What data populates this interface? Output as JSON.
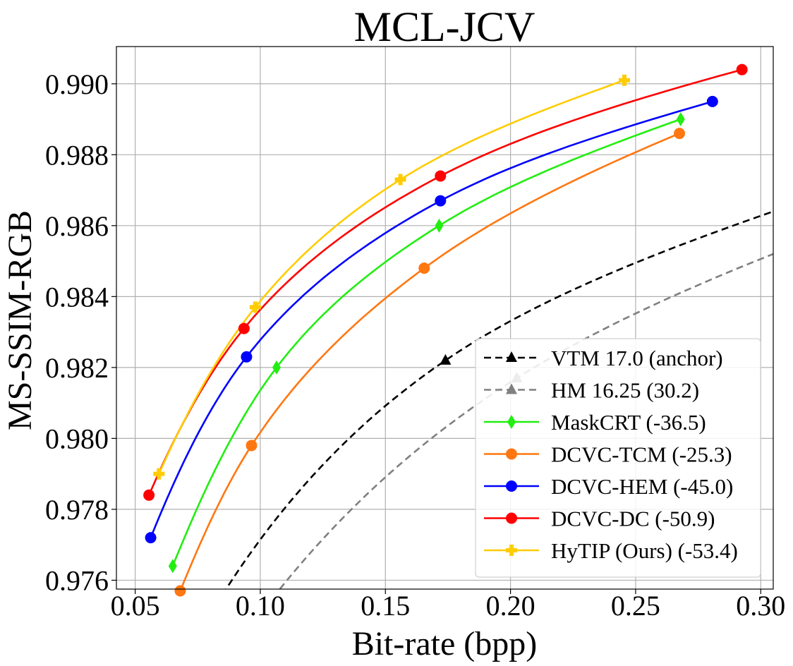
{
  "chart_data": {
    "type": "line",
    "title": "MCL-JCV",
    "xlabel": "Bit-rate (bpp)",
    "ylabel": "MS-SSIM-RGB",
    "xlim": [
      0.0425,
      0.305
    ],
    "ylim": [
      0.97575,
      0.99105
    ],
    "xticks": [
      0.05,
      0.1,
      0.15,
      0.2,
      0.25,
      0.3
    ],
    "xtick_labels": [
      "0.05",
      "0.10",
      "0.15",
      "0.20",
      "0.25",
      "0.30"
    ],
    "yticks": [
      0.976,
      0.978,
      0.98,
      0.982,
      0.984,
      0.986,
      0.988,
      0.99
    ],
    "ytick_labels": [
      "0.976",
      "0.978",
      "0.980",
      "0.982",
      "0.984",
      "0.986",
      "0.988",
      "0.990"
    ],
    "grid": true,
    "legend_position": "bottom-right",
    "series": [
      {
        "name": "VTM 17.0 (anchor)",
        "color": "#000000",
        "dashed": true,
        "marker": "triangle",
        "x": [
          0.0755,
          0.174,
          0.305
        ],
        "y": [
          0.9745,
          0.9822,
          0.9864
        ],
        "markers_x": [
          0.174
        ],
        "markers_y": [
          0.9822
        ]
      },
      {
        "name": "HM 16.25 (30.2)",
        "color": "#808080",
        "dashed": true,
        "marker": "triangle",
        "x": [
          0.105,
          0.2025,
          0.305
        ],
        "y": [
          0.9755,
          0.9817,
          0.9852
        ],
        "markers_x": [
          0.2025
        ],
        "markers_y": [
          0.9817
        ]
      },
      {
        "name": "MaskCRT (-36.5)",
        "color": "#22ee11",
        "dashed": false,
        "marker": "diamond",
        "x": [
          0.065,
          0.1065,
          0.1715,
          0.268
        ],
        "y": [
          0.9764,
          0.982,
          0.986,
          0.989
        ]
      },
      {
        "name": "DCVC-TCM (-25.3)",
        "color": "#ff7711",
        "dashed": false,
        "marker": "circle",
        "x": [
          0.068,
          0.0965,
          0.1655,
          0.2675
        ],
        "y": [
          0.9757,
          0.9798,
          0.9848,
          0.9886
        ]
      },
      {
        "name": "DCVC-HEM (-45.0)",
        "color": "#0000ff",
        "dashed": false,
        "marker": "circle",
        "x": [
          0.0562,
          0.0945,
          0.172,
          0.2807
        ],
        "y": [
          0.9772,
          0.9823,
          0.9867,
          0.9895
        ]
      },
      {
        "name": "DCVC-DC (-50.9)",
        "color": "#ff0000",
        "dashed": false,
        "marker": "circle",
        "x": [
          0.0555,
          0.0935,
          0.172,
          0.2925
        ],
        "y": [
          0.9784,
          0.9831,
          0.9874,
          0.9904
        ]
      },
      {
        "name": "HyTIP (Ours) (-53.4)",
        "color": "#ffcc00",
        "dashed": false,
        "marker": "plus",
        "x": [
          0.0595,
          0.098,
          0.156,
          0.2455
        ],
        "y": [
          0.979,
          0.9837,
          0.9873,
          0.9901
        ]
      }
    ]
  }
}
